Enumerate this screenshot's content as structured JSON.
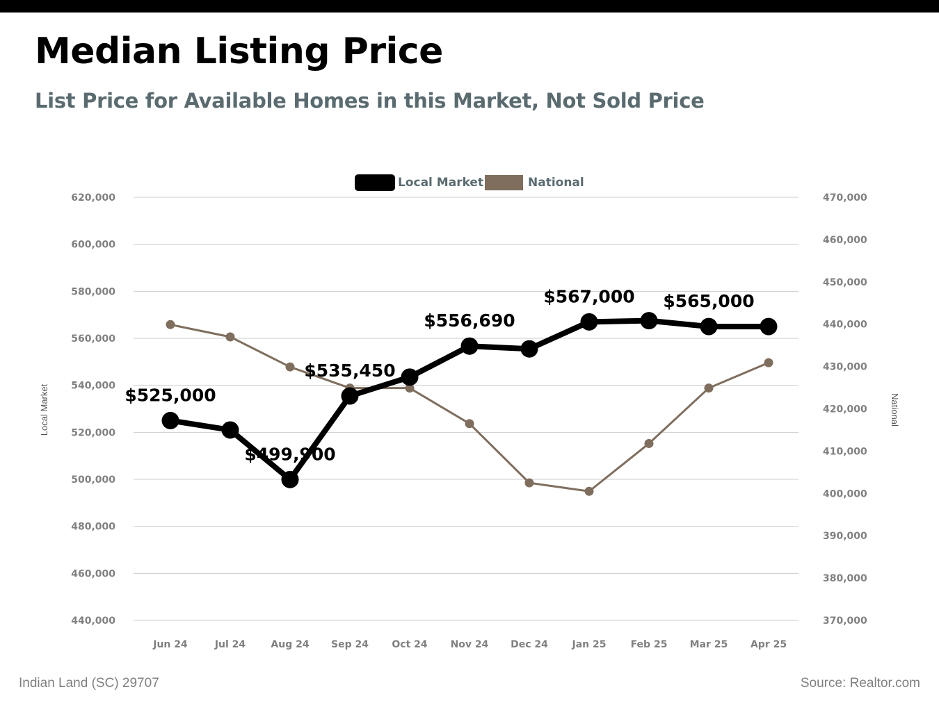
{
  "header": {
    "title": "Median Listing Price",
    "subtitle": "List Price for Available Homes in this Market, Not Sold Price"
  },
  "footer": {
    "location": "Indian Land (SC) 29707",
    "source": "Source: Realtor.com"
  },
  "colors": {
    "local": "#000000",
    "national": "#7f6e5e",
    "grid": "#cccccc",
    "tick_text": "#808080",
    "legend_text": "#5a6b70"
  },
  "chart_data": {
    "type": "line",
    "categories": [
      "Jun 24",
      "Jul 24",
      "Aug 24",
      "Sep 24",
      "Oct 24",
      "Nov 24",
      "Dec 24",
      "Jan 25",
      "Feb 25",
      "Mar 25",
      "Apr 25"
    ],
    "series": [
      {
        "name": "Local Market",
        "axis": "left",
        "values": [
          525000,
          521000,
          499900,
          535450,
          543500,
          556690,
          555500,
          567000,
          567500,
          565000,
          565000
        ],
        "data_labels": [
          "$525,000",
          null,
          "$499,900",
          "$535,450",
          null,
          "$556,690",
          null,
          "$567,000",
          null,
          "$565,000",
          null
        ]
      },
      {
        "name": "National",
        "axis": "right",
        "values": [
          439900,
          437000,
          429900,
          424900,
          424900,
          416500,
          402500,
          400500,
          411800,
          424900,
          430900
        ]
      }
    ],
    "y_left": {
      "label": "Local Market",
      "ylim": [
        440000,
        620000
      ],
      "ticks": [
        "440,000",
        "460,000",
        "480,000",
        "500,000",
        "520,000",
        "540,000",
        "560,000",
        "580,000",
        "600,000",
        "620,000"
      ]
    },
    "y_right": {
      "label": "National",
      "ylim": [
        370000,
        470000
      ],
      "ticks": [
        "370,000",
        "380,000",
        "390,000",
        "400,000",
        "410,000",
        "420,000",
        "430,000",
        "440,000",
        "450,000",
        "460,000",
        "470,000"
      ]
    },
    "legend": {
      "position": "top-center",
      "entries": [
        "Local Market",
        "National"
      ]
    },
    "grid": true
  }
}
